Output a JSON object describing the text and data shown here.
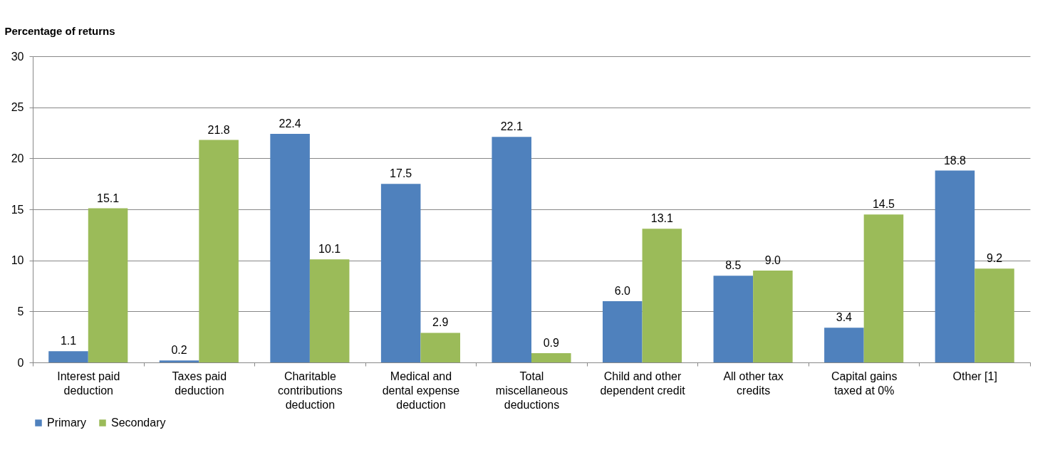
{
  "chart_data": {
    "type": "bar",
    "ylabel": "Percentage of returns",
    "categories": [
      "Interest paid deduction",
      "Taxes paid deduction",
      "Charitable contributions deduction",
      "Medical and dental expense deduction",
      "Total miscellaneous deductions",
      "Child and other dependent credit",
      "All other tax credits",
      "Capital gains taxed at 0%",
      "Other [1]"
    ],
    "series": [
      {
        "name": "Primary",
        "color": "#4f81bd",
        "values": [
          1.1,
          0.2,
          22.4,
          17.5,
          22.1,
          6.0,
          8.5,
          3.4,
          18.8
        ],
        "value_labels": [
          "1.1",
          "0.2",
          "22.4",
          "17.5",
          "22.1",
          "6.0",
          "8.5",
          "3.4",
          "18.8"
        ]
      },
      {
        "name": "Secondary",
        "color": "#9bbb59",
        "values": [
          15.1,
          21.8,
          10.1,
          2.9,
          0.9,
          13.1,
          9.0,
          14.5,
          9.2
        ],
        "value_labels": [
          "15.1",
          "21.8",
          "10.1",
          "2.9",
          "0.9",
          "13.1",
          "9.0",
          "14.5",
          "9.2"
        ]
      }
    ],
    "ylim": [
      0,
      30
    ],
    "yticks": [
      0,
      5,
      10,
      15,
      20,
      25,
      30
    ],
    "grid": "y",
    "legend": "bottom"
  }
}
